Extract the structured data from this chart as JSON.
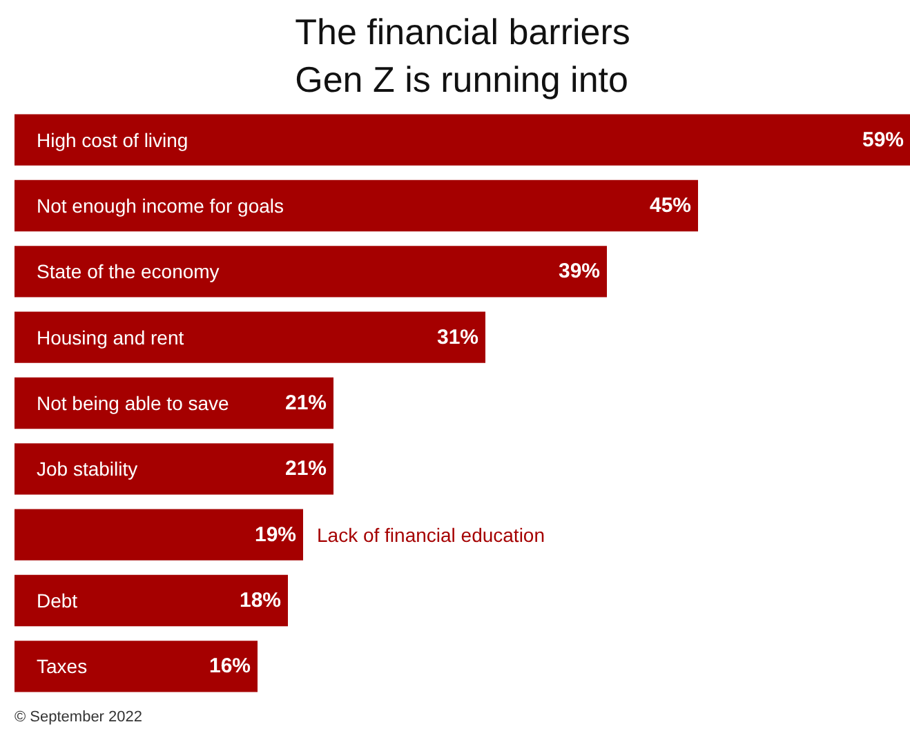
{
  "chart_data": {
    "type": "bar",
    "orientation": "horizontal",
    "tick_labels": false,
    "title": "The financial barriers\nGen Z is running into",
    "categories": [
      "High cost of living",
      "Not enough income for goals",
      "State of the economy",
      "Housing and rent",
      "Not being able to save",
      "Job stability",
      "Lack of financial education",
      "Debt",
      "Taxes"
    ],
    "values": [
      59,
      45,
      39,
      31,
      21,
      21,
      19,
      18,
      16
    ],
    "color": "#a50000",
    "data_labels": true,
    "value_labels": [
      "59%",
      "45%",
      "39%",
      "31%",
      "21%",
      "21%",
      "19%",
      "18%",
      "16%"
    ],
    "grid": false,
    "annotations": [
      "© September 2022"
    ]
  }
}
